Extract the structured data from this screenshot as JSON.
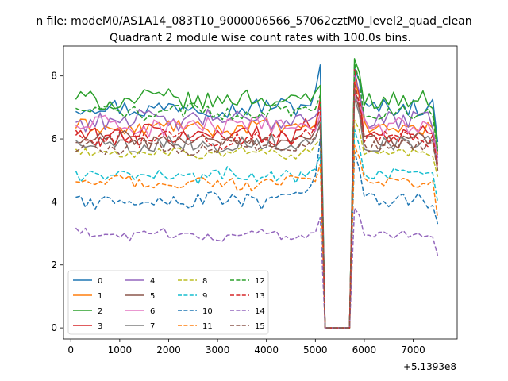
{
  "chart_data": {
    "type": "line",
    "suptitle": "n file: modeM0/AS1A14_083T10_9000006566_57062cztM0_level2_quad_clean",
    "title": "Quadrant 2 module wise count rates with 100.0s bins.",
    "xlabel": "",
    "ylabel": "",
    "offset_label": "+5.1393e8",
    "xlim": [
      -150,
      7900
    ],
    "ylim": [
      -0.35,
      8.95
    ],
    "xticks": [
      0,
      1000,
      2000,
      3000,
      4000,
      5000,
      6000,
      7000
    ],
    "xtick_labels": [
      "0",
      "1000",
      "2000",
      "3000",
      "4000",
      "5000",
      "6000",
      "7000"
    ],
    "yticks": [
      0,
      2,
      4,
      6,
      8
    ],
    "ytick_labels": [
      "0",
      "2",
      "4",
      "6",
      "8"
    ],
    "legend_location": "lower-left",
    "legend_columns": 4,
    "bin_size_s": 100,
    "x_start": 100,
    "x_step": 100,
    "n_points": 75,
    "series": [
      {
        "name": "0",
        "color": "#1f77b4",
        "dash": "solid",
        "level": 7.0,
        "noise": 0.28,
        "peak_left": 8.35,
        "peak_right": 8.25,
        "end": 5.9
      },
      {
        "name": "1",
        "color": "#ff7f0e",
        "dash": "solid",
        "level": 6.35,
        "noise": 0.22,
        "peak_left": 7.2,
        "peak_right": 7.9,
        "end": 5.5
      },
      {
        "name": "2",
        "color": "#2ca02c",
        "dash": "solid",
        "level": 7.25,
        "noise": 0.28,
        "peak_left": 7.7,
        "peak_right": 8.55,
        "end": 5.7
      },
      {
        "name": "3",
        "color": "#d62728",
        "dash": "solid",
        "level": 6.15,
        "noise": 0.3,
        "peak_left": 7.3,
        "peak_right": 8.2,
        "end": 5.2
      },
      {
        "name": "4",
        "color": "#9467bd",
        "dash": "solid",
        "level": 6.6,
        "noise": 0.3,
        "peak_left": 7.0,
        "peak_right": 8.0,
        "end": 5.4
      },
      {
        "name": "5",
        "color": "#8c564b",
        "dash": "solid",
        "level": 5.95,
        "noise": 0.25,
        "peak_left": 6.6,
        "peak_right": 7.5,
        "end": 5.0
      },
      {
        "name": "6",
        "color": "#e377c2",
        "dash": "solid",
        "level": 6.4,
        "noise": 0.3,
        "peak_left": 6.8,
        "peak_right": 7.4,
        "end": 5.3
      },
      {
        "name": "7",
        "color": "#7f7f7f",
        "dash": "solid",
        "level": 5.85,
        "noise": 0.25,
        "peak_left": 6.5,
        "peak_right": 7.3,
        "end": 5.2
      },
      {
        "name": "8",
        "color": "#bcbd22",
        "dash": "dashed",
        "level": 5.55,
        "noise": 0.14,
        "peak_left": 6.0,
        "peak_right": 6.6,
        "end": 4.8
      },
      {
        "name": "9",
        "color": "#17becf",
        "dash": "dashed",
        "level": 4.85,
        "noise": 0.22,
        "peak_left": 5.5,
        "peak_right": 6.3,
        "end": 4.0
      },
      {
        "name": "10",
        "color": "#1f77b4",
        "dash": "dashed",
        "level": 4.05,
        "noise": 0.25,
        "peak_left": 6.0,
        "peak_right": 5.6,
        "end": 3.3
      },
      {
        "name": "11",
        "color": "#ff7f0e",
        "dash": "dashed",
        "level": 4.6,
        "noise": 0.18,
        "peak_left": 5.2,
        "peak_right": 5.8,
        "end": 3.5
      },
      {
        "name": "12",
        "color": "#2ca02c",
        "dash": "dashed",
        "level": 6.85,
        "noise": 0.22,
        "peak_left": 7.4,
        "peak_right": 8.4,
        "end": 5.6
      },
      {
        "name": "13",
        "color": "#d62728",
        "dash": "dashed",
        "level": 6.0,
        "noise": 0.28,
        "peak_left": 7.0,
        "peak_right": 7.8,
        "end": 5.1
      },
      {
        "name": "14",
        "color": "#9467bd",
        "dash": "dashed",
        "level": 2.95,
        "noise": 0.15,
        "peak_left": 3.5,
        "peak_right": 3.8,
        "end": 2.3
      },
      {
        "name": "15",
        "color": "#8c564b",
        "dash": "dashed",
        "level": 5.75,
        "noise": 0.22,
        "peak_left": 6.4,
        "peak_right": 7.7,
        "end": 5.0
      }
    ]
  }
}
